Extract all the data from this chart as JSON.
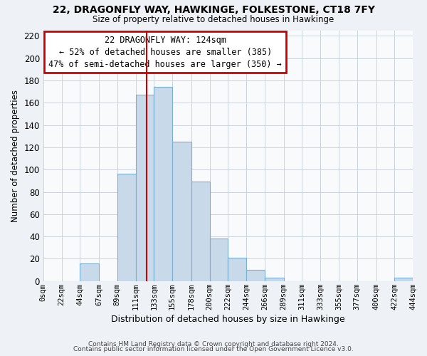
{
  "title": "22, DRAGONFLY WAY, HAWKINGE, FOLKESTONE, CT18 7FY",
  "subtitle": "Size of property relative to detached houses in Hawkinge",
  "xlabel": "Distribution of detached houses by size in Hawkinge",
  "ylabel": "Number of detached properties",
  "property_size": 124,
  "bar_color": "#c8daea",
  "bar_edge_color": "#7aafd4",
  "vline_color": "#cc0000",
  "annotation_line1": "22 DRAGONFLY WAY: 124sqm",
  "annotation_line2": "← 52% of detached houses are smaller (385)",
  "annotation_line3": "47% of semi-detached houses are larger (350) →",
  "annotation_box_color": "#cc0000",
  "footer1": "Contains HM Land Registry data © Crown copyright and database right 2024.",
  "footer2": "Contains public sector information licensed under the Open Government Licence v3.0.",
  "bin_edges": [
    0,
    22,
    44,
    67,
    89,
    111,
    133,
    155,
    178,
    200,
    222,
    244,
    266,
    289,
    311,
    333,
    355,
    377,
    400,
    422,
    444
  ],
  "bin_labels": [
    "0sqm",
    "22sqm",
    "44sqm",
    "67sqm",
    "89sqm",
    "111sqm",
    "133sqm",
    "155sqm",
    "178sqm",
    "200sqm",
    "222sqm",
    "244sqm",
    "266sqm",
    "289sqm",
    "311sqm",
    "333sqm",
    "355sqm",
    "377sqm",
    "400sqm",
    "422sqm",
    "444sqm"
  ],
  "counts": [
    0,
    0,
    16,
    0,
    96,
    167,
    174,
    125,
    89,
    38,
    21,
    10,
    3,
    0,
    0,
    0,
    0,
    0,
    0,
    3
  ],
  "ylim": [
    0,
    225
  ],
  "yticks": [
    0,
    20,
    40,
    60,
    80,
    100,
    120,
    140,
    160,
    180,
    200,
    220
  ],
  "background_color": "#eef2f7",
  "plot_bg_color": "#f8fafc",
  "grid_color": "#c5cdd8"
}
